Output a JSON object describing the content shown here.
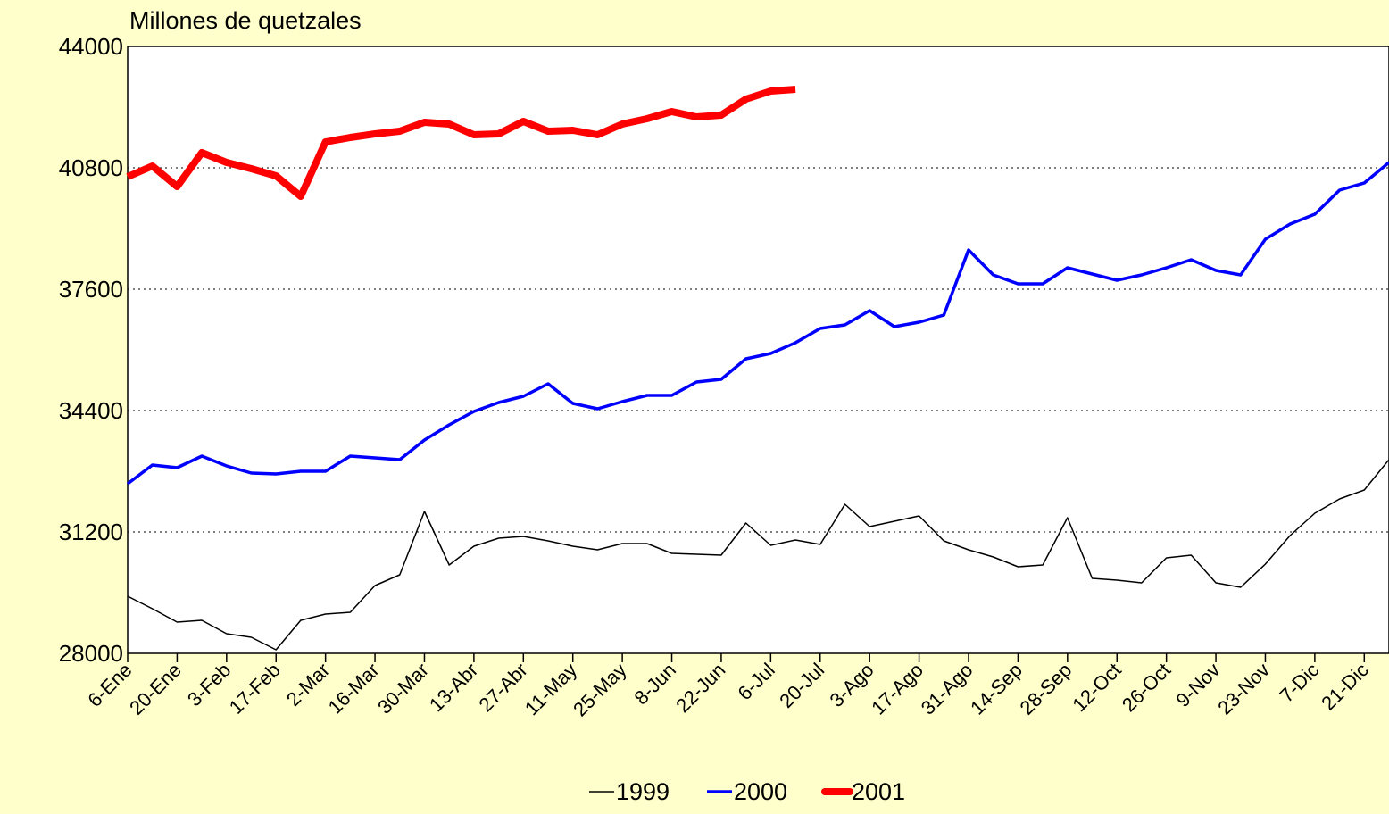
{
  "chart_data": {
    "type": "line",
    "title": "Millones de quetzales",
    "categories": [
      "6-Ene",
      null,
      "20-Ene",
      null,
      "3-Feb",
      null,
      "17-Feb",
      null,
      "2-Mar",
      null,
      "16-Mar",
      null,
      "30-Mar",
      null,
      "13-Abr",
      null,
      "27-Abr",
      null,
      "11-May",
      null,
      "25-May",
      null,
      "8-Jun",
      null,
      "22-Jun",
      null,
      "6-Jul",
      null,
      "20-Jul",
      null,
      "3-Ago",
      null,
      "17-Ago",
      null,
      "31-Ago",
      null,
      "14-Sep",
      null,
      "28-Sep",
      null,
      "12-Oct",
      null,
      "26-Oct",
      null,
      "9-Nov",
      null,
      "23-Nov",
      null,
      "7-Dic",
      null,
      "21-Dic",
      null
    ],
    "series": [
      {
        "name": "1999",
        "color": "#000000",
        "width": 1.5,
        "values": [
          29506,
          29176,
          28824,
          28871,
          28518,
          28424,
          28094,
          28871,
          29035,
          29082,
          29788,
          30071,
          31741,
          30329,
          30824,
          31035,
          31082,
          30965,
          30824,
          30729,
          30894,
          30894,
          30635,
          30612,
          30588,
          31435,
          30847,
          30988,
          30871,
          31929,
          31341,
          31482,
          31624,
          30965,
          30729,
          30541,
          30282,
          30329,
          31576,
          29976,
          29929,
          29859,
          30518,
          30588,
          29859,
          29741,
          30353,
          31106,
          31694,
          32071,
          32306,
          33106
        ]
      },
      {
        "name": "2000",
        "color": "#0000ff",
        "width": 3.5,
        "values": [
          32471,
          32965,
          32894,
          33200,
          32941,
          32753,
          32730,
          32800,
          32800,
          33200,
          33153,
          33106,
          33624,
          34024,
          34376,
          34612,
          34777,
          35106,
          34588,
          34447,
          34635,
          34800,
          34800,
          35153,
          35224,
          35765,
          35906,
          36188,
          36565,
          36659,
          37035,
          36612,
          36730,
          36918,
          38636,
          37977,
          37741,
          37741,
          38165,
          38000,
          37835,
          37977,
          38165,
          38377,
          38094,
          37977,
          38918,
          39318,
          39576,
          40212,
          40400,
          40941
        ]
      },
      {
        "name": "2001",
        "color": "#ff0000",
        "width": 8,
        "values": [
          40565,
          40847,
          40306,
          41200,
          40941,
          40776,
          40588,
          40047,
          41482,
          41600,
          41694,
          41765,
          42000,
          41953,
          41671,
          41694,
          42024,
          41765,
          41788,
          41671,
          41953,
          42094,
          42282,
          42141,
          42188,
          42612,
          42824,
          42871,
          null,
          null,
          null,
          null,
          null,
          null,
          null,
          null,
          null,
          null,
          null,
          null,
          null,
          null,
          null,
          null,
          null,
          null,
          null,
          null,
          null,
          null,
          null,
          null
        ]
      }
    ],
    "ylim": [
      28000,
      44000
    ],
    "yticks": [
      28000,
      31200,
      34400,
      37600,
      40800,
      44000
    ],
    "grid": true
  }
}
